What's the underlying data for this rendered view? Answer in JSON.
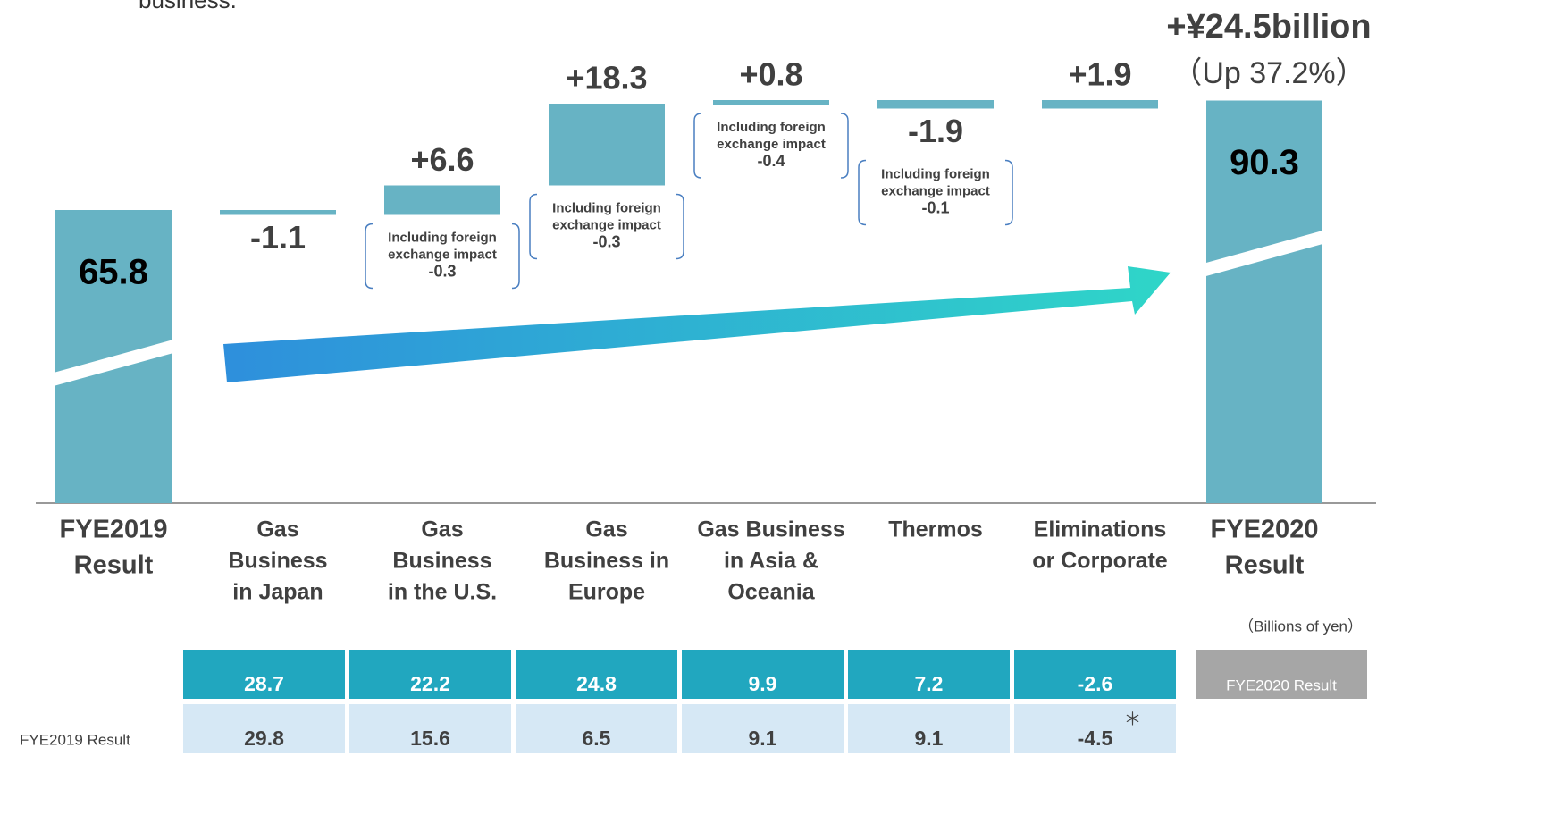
{
  "chart_data": {
    "type": "waterfall",
    "caption": "business.",
    "categories": [
      [
        "FYE2019",
        "Result"
      ],
      [
        "Gas",
        "Business",
        "in Japan"
      ],
      [
        "Gas",
        "Business",
        "in the U.S."
      ],
      [
        "Gas",
        "Business in",
        "Europe"
      ],
      [
        "Gas Business",
        "in Asia &",
        "Oceania"
      ],
      [
        "Thermos"
      ],
      [
        "Eliminations",
        "or Corporate"
      ],
      [
        "FYE2020",
        "Result"
      ]
    ],
    "values": [
      65.8,
      -1.1,
      6.6,
      18.3,
      0.8,
      -1.9,
      1.9,
      90.3
    ],
    "value_labels": [
      "65.8",
      "-1.1",
      "+6.6",
      "+18.3",
      "+0.8",
      "-1.9",
      "+1.9",
      "90.3"
    ],
    "color": "#67b3c4",
    "fx_notes": [
      null,
      null,
      {
        "lines": [
          "Including foreign",
          "exchange impact"
        ],
        "value": -0.3
      },
      {
        "lines": [
          "Including foreign",
          "exchange impact"
        ],
        "value": -0.3
      },
      {
        "lines": [
          "Including foreign",
          "exchange impact"
        ],
        "value": -0.4
      },
      {
        "lines": [
          "Including foreign",
          "exchange impact"
        ],
        "value": -0.1
      },
      null,
      null
    ],
    "total_change": "+¥24.5billion",
    "total_change_pct": "（Up 37.2%）",
    "unit": "（Billions of yen）",
    "table": {
      "rows": [
        {
          "label": "FYE2020 Result",
          "values": [
            28.7,
            22.2,
            24.8,
            9.9,
            7.2,
            -2.6
          ]
        },
        {
          "label": "FYE2019 Result",
          "values": [
            29.8,
            15.6,
            6.5,
            9.1,
            9.1,
            -4.5
          ],
          "note": "＊"
        }
      ]
    }
  }
}
